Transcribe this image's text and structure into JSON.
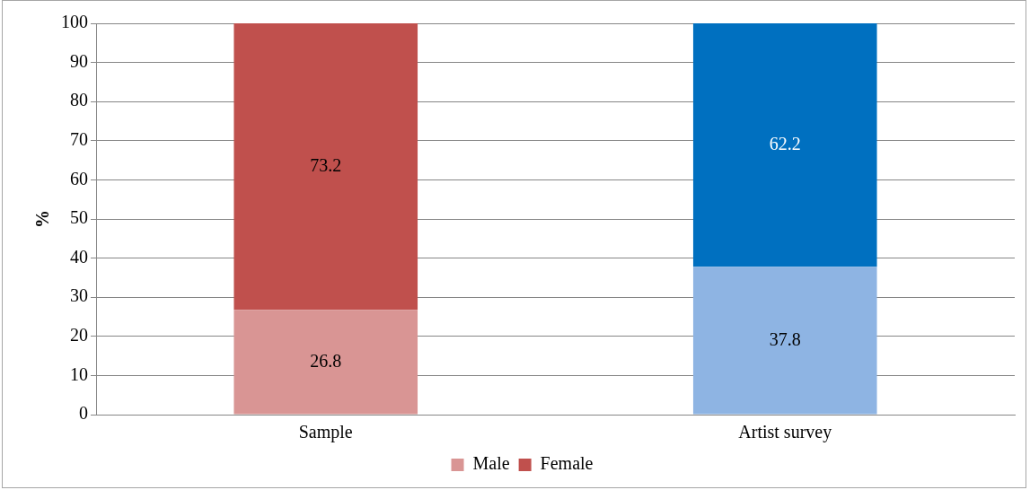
{
  "chart_data": {
    "type": "bar",
    "stacked": true,
    "ylabel": "%",
    "categories": [
      "Sample",
      "Artist survey"
    ],
    "series": [
      {
        "name": "Male",
        "colors": [
          "#d99594",
          "#8eb4e3"
        ],
        "values": [
          26.8,
          37.8
        ]
      },
      {
        "name": "Female",
        "colors": [
          "#c0504d",
          "#0070c0"
        ],
        "values": [
          73.2,
          62.2
        ]
      }
    ],
    "ylim": [
      0,
      100
    ],
    "yticks": [
      0,
      10,
      20,
      30,
      40,
      50,
      60,
      70,
      80,
      90,
      100
    ],
    "grid": "y",
    "legend": "bottom",
    "data_labels": true
  }
}
